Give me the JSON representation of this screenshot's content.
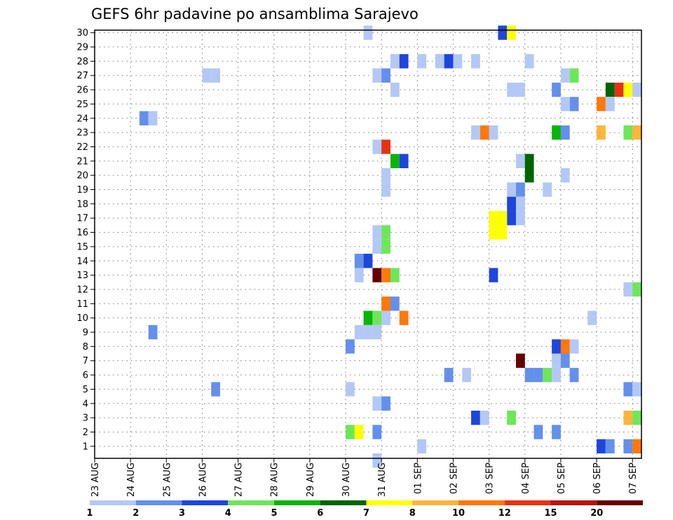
{
  "chart_data": {
    "type": "heatmap",
    "title": "GEFS 6hr padavine po ansamblima Sarajevo",
    "members": [
      "1",
      "2",
      "3",
      "4",
      "5",
      "6",
      "7",
      "8",
      "9",
      "10",
      "11",
      "12",
      "13",
      "14",
      "15",
      "16",
      "17",
      "18",
      "19",
      "20",
      "21",
      "22",
      "23",
      "24",
      "25",
      "26",
      "27",
      "28",
      "29",
      "30"
    ],
    "x_ticks": [
      "23 AUG",
      "24 AUG",
      "25 AUG",
      "26 AUG",
      "27 AUG",
      "28 AUG",
      "29 AUG",
      "30 AUG",
      "31 AUG",
      "01 SEP",
      "02 SEP",
      "03 SEP",
      "04 SEP",
      "05 SEP",
      "06 SEP",
      "07 SEP"
    ],
    "xlim_hours": [
      0,
      366
    ],
    "step_hours": 6,
    "grid": "dotted",
    "colorbar": {
      "position": "bottom",
      "colors": [
        "#b4c8f5",
        "#6490eb",
        "#1e46dc",
        "#6ee65a",
        "#0ab40a",
        "#006400",
        "#ffff00",
        "#ffb43c",
        "#ff780a",
        "#e63214",
        "#b4140a",
        "#640000"
      ],
      "labels": [
        "1",
        "2",
        "3",
        "4",
        "5",
        "6",
        "7",
        "8",
        "10",
        "12",
        "15",
        "20"
      ]
    },
    "cells": [
      {
        "m": 30,
        "t": 180,
        "v": 1
      },
      {
        "m": 30,
        "t": 270,
        "v": 3
      },
      {
        "m": 30,
        "t": 276,
        "v": 7
      },
      {
        "m": 28,
        "t": 198,
        "v": 1
      },
      {
        "m": 28,
        "t": 204,
        "v": 3
      },
      {
        "m": 28,
        "t": 216,
        "v": 1
      },
      {
        "m": 28,
        "t": 228,
        "v": 1
      },
      {
        "m": 28,
        "t": 234,
        "v": 3
      },
      {
        "m": 28,
        "t": 240,
        "v": 1
      },
      {
        "m": 28,
        "t": 252,
        "v": 1
      },
      {
        "m": 28,
        "t": 288,
        "v": 1
      },
      {
        "m": 27,
        "t": 72,
        "v": 1
      },
      {
        "m": 27,
        "t": 78,
        "v": 1
      },
      {
        "m": 27,
        "t": 186,
        "v": 1
      },
      {
        "m": 27,
        "t": 192,
        "v": 2
      },
      {
        "m": 27,
        "t": 312,
        "v": 1
      },
      {
        "m": 27,
        "t": 318,
        "v": 4
      },
      {
        "m": 26,
        "t": 198,
        "v": 1
      },
      {
        "m": 26,
        "t": 276,
        "v": 1
      },
      {
        "m": 26,
        "t": 282,
        "v": 1
      },
      {
        "m": 26,
        "t": 306,
        "v": 2
      },
      {
        "m": 26,
        "t": 342,
        "v": 6
      },
      {
        "m": 26,
        "t": 348,
        "v": 12
      },
      {
        "m": 26,
        "t": 354,
        "v": 7
      },
      {
        "m": 26,
        "t": 360,
        "v": 1
      },
      {
        "m": 25,
        "t": 312,
        "v": 1
      },
      {
        "m": 25,
        "t": 318,
        "v": 2
      },
      {
        "m": 25,
        "t": 336,
        "v": 10
      },
      {
        "m": 25,
        "t": 342,
        "v": 1
      },
      {
        "m": 24,
        "t": 30,
        "v": 2
      },
      {
        "m": 24,
        "t": 36,
        "v": 1
      },
      {
        "m": 23,
        "t": 252,
        "v": 1
      },
      {
        "m": 23,
        "t": 258,
        "v": 10
      },
      {
        "m": 23,
        "t": 264,
        "v": 1
      },
      {
        "m": 23,
        "t": 306,
        "v": 5
      },
      {
        "m": 23,
        "t": 312,
        "v": 2
      },
      {
        "m": 23,
        "t": 336,
        "v": 8
      },
      {
        "m": 23,
        "t": 354,
        "v": 4
      },
      {
        "m": 23,
        "t": 360,
        "v": 8
      },
      {
        "m": 22,
        "t": 186,
        "v": 1
      },
      {
        "m": 22,
        "t": 192,
        "v": 12
      },
      {
        "m": 21,
        "t": 198,
        "v": 5
      },
      {
        "m": 21,
        "t": 204,
        "v": 3
      },
      {
        "m": 21,
        "t": 282,
        "v": 1
      },
      {
        "m": 21,
        "t": 288,
        "v": 6
      },
      {
        "m": 20,
        "t": 192,
        "v": 1
      },
      {
        "m": 20,
        "t": 288,
        "v": 6
      },
      {
        "m": 20,
        "t": 312,
        "v": 1
      },
      {
        "m": 19,
        "t": 192,
        "v": 1
      },
      {
        "m": 19,
        "t": 282,
        "v": 2
      },
      {
        "m": 19,
        "t": 276,
        "v": 1
      },
      {
        "m": 19,
        "t": 300,
        "v": 1
      },
      {
        "m": 18,
        "t": 276,
        "v": 3
      },
      {
        "m": 18,
        "t": 282,
        "v": 1
      },
      {
        "m": 17,
        "t": 276,
        "v": 3
      },
      {
        "m": 17,
        "t": 282,
        "v": 1
      },
      {
        "m": 17,
        "t": 264,
        "v": 7
      },
      {
        "m": 17,
        "t": 270,
        "v": 7
      },
      {
        "m": 16,
        "t": 264,
        "v": 7
      },
      {
        "m": 16,
        "t": 270,
        "v": 7
      },
      {
        "m": 16,
        "t": 186,
        "v": 1
      },
      {
        "m": 16,
        "t": 192,
        "v": 4
      },
      {
        "m": 15,
        "t": 186,
        "v": 1
      },
      {
        "m": 15,
        "t": 192,
        "v": 4
      },
      {
        "m": 14,
        "t": 174,
        "v": 2
      },
      {
        "m": 14,
        "t": 180,
        "v": 3
      },
      {
        "m": 13,
        "t": 174,
        "v": 1
      },
      {
        "m": 13,
        "t": 186,
        "v": 20
      },
      {
        "m": 13,
        "t": 192,
        "v": 10
      },
      {
        "m": 13,
        "t": 198,
        "v": 4
      },
      {
        "m": 13,
        "t": 264,
        "v": 3
      },
      {
        "m": 12,
        "t": 354,
        "v": 1
      },
      {
        "m": 12,
        "t": 360,
        "v": 4
      },
      {
        "m": 11,
        "t": 192,
        "v": 10
      },
      {
        "m": 11,
        "t": 198,
        "v": 2
      },
      {
        "m": 10,
        "t": 180,
        "v": 5
      },
      {
        "m": 10,
        "t": 186,
        "v": 4
      },
      {
        "m": 10,
        "t": 192,
        "v": 1
      },
      {
        "m": 10,
        "t": 204,
        "v": 10
      },
      {
        "m": 10,
        "t": 330,
        "v": 1
      },
      {
        "m": 9,
        "t": 36,
        "v": 2
      },
      {
        "m": 9,
        "t": 174,
        "v": 1
      },
      {
        "m": 9,
        "t": 180,
        "v": 1
      },
      {
        "m": 9,
        "t": 186,
        "v": 1
      },
      {
        "m": 8,
        "t": 168,
        "v": 2
      },
      {
        "m": 8,
        "t": 306,
        "v": 3
      },
      {
        "m": 8,
        "t": 312,
        "v": 10
      },
      {
        "m": 8,
        "t": 318,
        "v": 1
      },
      {
        "m": 7,
        "t": 282,
        "v": 20
      },
      {
        "m": 7,
        "t": 306,
        "v": 1
      },
      {
        "m": 7,
        "t": 312,
        "v": 2
      },
      {
        "m": 6,
        "t": 234,
        "v": 2
      },
      {
        "m": 6,
        "t": 246,
        "v": 1
      },
      {
        "m": 6,
        "t": 288,
        "v": 2
      },
      {
        "m": 6,
        "t": 294,
        "v": 2
      },
      {
        "m": 6,
        "t": 300,
        "v": 4
      },
      {
        "m": 6,
        "t": 306,
        "v": 1
      },
      {
        "m": 6,
        "t": 318,
        "v": 2
      },
      {
        "m": 5,
        "t": 78,
        "v": 2
      },
      {
        "m": 5,
        "t": 168,
        "v": 1
      },
      {
        "m": 5,
        "t": 354,
        "v": 2
      },
      {
        "m": 5,
        "t": 360,
        "v": 1
      },
      {
        "m": 4,
        "t": 186,
        "v": 1
      },
      {
        "m": 4,
        "t": 192,
        "v": 2
      },
      {
        "m": 3,
        "t": 252,
        "v": 3
      },
      {
        "m": 3,
        "t": 258,
        "v": 1
      },
      {
        "m": 3,
        "t": 276,
        "v": 4
      },
      {
        "m": 3,
        "t": 354,
        "v": 8
      },
      {
        "m": 3,
        "t": 360,
        "v": 4
      },
      {
        "m": 2,
        "t": 168,
        "v": 4
      },
      {
        "m": 2,
        "t": 174,
        "v": 7
      },
      {
        "m": 2,
        "t": 186,
        "v": 2
      },
      {
        "m": 2,
        "t": 294,
        "v": 2
      },
      {
        "m": 2,
        "t": 306,
        "v": 2
      },
      {
        "m": 1,
        "t": 216,
        "v": 1
      },
      {
        "m": 1,
        "t": 336,
        "v": 3
      },
      {
        "m": 1,
        "t": 342,
        "v": 2
      },
      {
        "m": 1,
        "t": 354,
        "v": 2
      },
      {
        "m": 1,
        "t": 360,
        "v": 10
      },
      {
        "m": 0,
        "t": 186,
        "v": 1
      }
    ]
  }
}
